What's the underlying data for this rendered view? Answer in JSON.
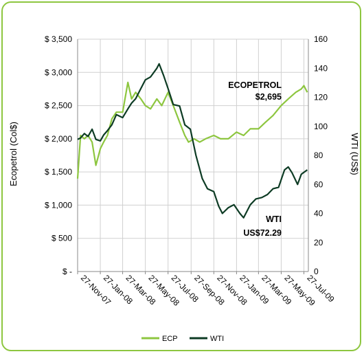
{
  "chart_data": {
    "type": "line",
    "title": "",
    "ylabel_left": "Ecopetrol (Col$)",
    "ylabel_right": "WTI (US$)",
    "ylim_left": [
      0,
      3500
    ],
    "ylim_right": [
      0,
      160
    ],
    "left_ticks": [
      "$ -",
      "$ 500",
      "$ 1,000",
      "$ 1,500",
      "$ 2,000",
      "$ 2,500",
      "$ 3,000",
      "$ 3,500"
    ],
    "right_ticks": [
      "0",
      "20",
      "40",
      "60",
      "80",
      "100",
      "120",
      "140",
      "160"
    ],
    "x_ticks": [
      "27-Nov-07",
      "27-Jan-08",
      "27-Mar-08",
      "27-May-08",
      "27-Jul-08",
      "27-Sep-08",
      "27-Nov-08",
      "27-Jan-09",
      "27-Mar-09",
      "27-May-09",
      "27-Jul-09"
    ],
    "grid": true,
    "legend_position": "bottom",
    "series": [
      {
        "name": "ECP",
        "axis": "left",
        "color": "#8dc63f",
        "x": [
          "2007-11-27",
          "2007-12-05",
          "2007-12-15",
          "2007-12-25",
          "2008-01-05",
          "2008-01-15",
          "2008-01-27",
          "2008-02-05",
          "2008-02-15",
          "2008-02-27",
          "2008-03-10",
          "2008-03-27",
          "2008-04-10",
          "2008-04-20",
          "2008-05-01",
          "2008-05-15",
          "2008-05-27",
          "2008-06-10",
          "2008-06-27",
          "2008-07-10",
          "2008-07-27",
          "2008-08-10",
          "2008-08-27",
          "2008-09-10",
          "2008-09-20",
          "2008-10-05",
          "2008-10-20",
          "2008-11-05",
          "2008-11-27",
          "2008-12-15",
          "2009-01-05",
          "2009-01-27",
          "2009-02-15",
          "2009-03-05",
          "2009-03-27",
          "2009-04-15",
          "2009-05-05",
          "2009-05-27",
          "2009-06-15",
          "2009-07-05",
          "2009-07-20",
          "2009-07-27",
          "2009-08-05"
        ],
        "values": [
          1400,
          2050,
          2000,
          2050,
          1950,
          1600,
          1850,
          1950,
          2050,
          2300,
          2400,
          2400,
          2850,
          2600,
          2700,
          2600,
          2500,
          2450,
          2600,
          2500,
          2700,
          2500,
          2250,
          2050,
          1950,
          2000,
          1950,
          2000,
          2050,
          2000,
          2000,
          2100,
          2050,
          2150,
          2150,
          2250,
          2350,
          2500,
          2600,
          2700,
          2750,
          2800,
          2700
        ]
      },
      {
        "name": "WTI",
        "axis": "right",
        "color": "#0d3b24",
        "x": [
          "2007-11-27",
          "2007-12-05",
          "2007-12-15",
          "2007-12-25",
          "2008-01-05",
          "2008-01-15",
          "2008-01-27",
          "2008-02-05",
          "2008-02-15",
          "2008-02-27",
          "2008-03-10",
          "2008-03-27",
          "2008-04-10",
          "2008-04-20",
          "2008-05-01",
          "2008-05-15",
          "2008-05-27",
          "2008-06-10",
          "2008-06-27",
          "2008-07-03",
          "2008-07-15",
          "2008-07-27",
          "2008-08-10",
          "2008-08-27",
          "2008-09-10",
          "2008-09-25",
          "2008-10-10",
          "2008-10-27",
          "2008-11-10",
          "2008-11-27",
          "2008-12-10",
          "2008-12-20",
          "2009-01-05",
          "2009-01-20",
          "2009-02-05",
          "2009-02-15",
          "2009-03-05",
          "2009-03-20",
          "2009-04-05",
          "2009-04-20",
          "2009-05-05",
          "2009-05-20",
          "2009-06-05",
          "2009-06-15",
          "2009-06-25",
          "2009-07-10",
          "2009-07-20",
          "2009-08-05"
        ],
        "values": [
          91,
          92,
          95,
          93,
          98,
          91,
          90,
          94,
          97,
          101,
          108,
          106,
          112,
          116,
          119,
          126,
          132,
          134,
          140,
          143,
          135,
          126,
          115,
          114,
          101,
          98,
          80,
          64,
          57,
          55,
          45,
          40,
          44,
          46,
          40,
          37,
          46,
          50,
          51,
          53,
          57,
          58,
          70,
          72,
          68,
          60,
          67,
          70
        ]
      }
    ],
    "annotations": [
      {
        "label": "ECOPETROL",
        "value": "$2,695"
      },
      {
        "label": "WTI",
        "value": "US$72.29"
      }
    ]
  }
}
